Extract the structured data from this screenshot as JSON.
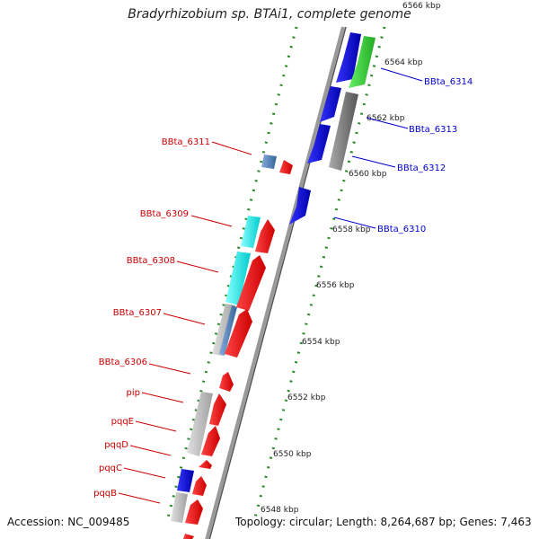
{
  "title": "Bradyrhizobium sp. BTAi1, complete genome",
  "footer": {
    "accession": "Accession: NC_009485",
    "topology": "Topology: circular; Length: 8,264,687 bp; Genes: 7,463"
  },
  "colors": {
    "forward_label": "#0000cc",
    "reverse_label": "#cc0000",
    "backbone": "#888888",
    "tick_dots": "#2a8a2a"
  },
  "kbp_labels": [
    "6566 kbp",
    "6564 kbp",
    "6562 kbp",
    "6560 kbp",
    "6558 kbp",
    "6556 kbp",
    "6554 kbp",
    "6552 kbp",
    "6550 kbp",
    "6548 kbp"
  ],
  "forward_genes": [
    "BBta_6314",
    "BBta_6313",
    "BBta_6312",
    "BBta_6310"
  ],
  "reverse_genes": [
    "BBta_6311",
    "BBta_6309",
    "BBta_6308",
    "BBta_6307",
    "BBta_6306",
    "pip",
    "pqqE",
    "pqqD",
    "pqqC",
    "pqqB"
  ]
}
